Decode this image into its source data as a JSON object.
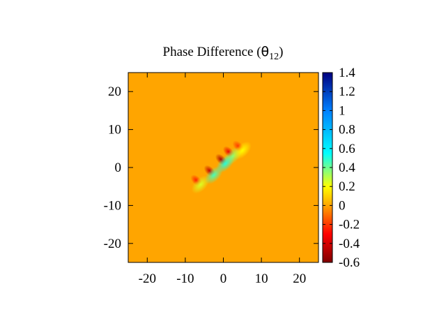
{
  "chart_data": {
    "type": "heatmap",
    "title_prefix": "Phase Difference (",
    "title_symbol": "θ",
    "title_subscript": "12",
    "title_suffix": ")",
    "xlabel": "",
    "ylabel": "",
    "xlim": [
      -25,
      25
    ],
    "ylim": [
      -25,
      25
    ],
    "xticks": [
      -20,
      -10,
      0,
      10,
      20
    ],
    "yticks": [
      -20,
      -10,
      0,
      10,
      20
    ],
    "colorbar": {
      "range": [
        -0.6,
        1.4
      ],
      "ticks": [
        {
          "value": 1.4,
          "label": "1.4"
        },
        {
          "value": 1.2,
          "label": "1.2"
        },
        {
          "value": 1.0,
          "label": "1"
        },
        {
          "value": 0.8,
          "label": "0.8"
        },
        {
          "value": 0.6,
          "label": "0.6"
        },
        {
          "value": 0.4,
          "label": "0.4"
        },
        {
          "value": 0.2,
          "label": "0.2"
        },
        {
          "value": 0.0,
          "label": "0"
        },
        {
          "value": -0.2,
          "label": "-0.2"
        },
        {
          "value": -0.4,
          "label": "-0.4"
        },
        {
          "value": -0.6,
          "label": "-0.6"
        }
      ],
      "colormap": [
        {
          "value": -0.6,
          "color": "#7f0000"
        },
        {
          "value": -0.3,
          "color": "#ff0000"
        },
        {
          "value": 0.0,
          "color": "#ffa500"
        },
        {
          "value": 0.2,
          "color": "#ffff00"
        },
        {
          "value": 0.55,
          "color": "#00ffff"
        },
        {
          "value": 1.0,
          "color": "#0080ff"
        },
        {
          "value": 1.4,
          "color": "#00007f"
        }
      ]
    },
    "background_value": 0.0,
    "features": [
      {
        "x": -6,
        "y": -4.5,
        "amplitude": 0.25
      },
      {
        "x": 2.5,
        "y": 3.0,
        "amplitude": 0.35
      },
      {
        "x": 5.0,
        "y": 4.5,
        "amplitude": 0.2
      },
      {
        "x": -2.5,
        "y": -2.0,
        "amplitude": 0.45
      },
      {
        "x": 0.5,
        "y": 1.0,
        "amplitude": 0.5
      }
    ]
  }
}
